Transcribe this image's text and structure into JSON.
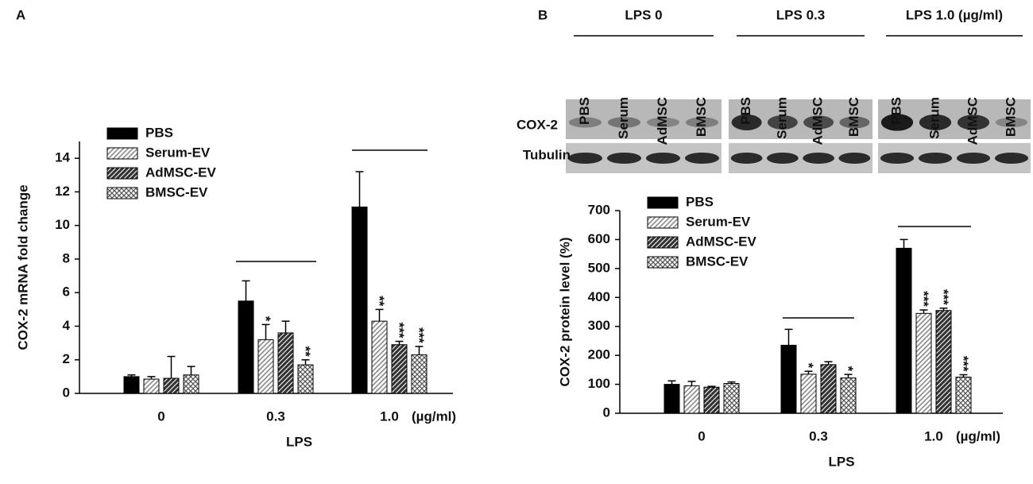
{
  "chart_data": [
    {
      "type": "bar",
      "panel_label": "A",
      "ylabel": "COX-2 mRNA fold change",
      "xlabel": "LPS",
      "x_unit": "(µg/ml)",
      "categories": [
        "0",
        "0.3",
        "1.0"
      ],
      "ylim": [
        0,
        15
      ],
      "yticks": [
        0,
        2,
        4,
        6,
        8,
        10,
        12,
        14
      ],
      "series": [
        {
          "name": "PBS",
          "color": "#000000",
          "values": [
            1.0,
            5.5,
            11.1
          ],
          "errors": [
            0.1,
            1.2,
            2.1
          ],
          "significance": [
            null,
            null,
            null
          ]
        },
        {
          "name": "Serum-EV",
          "color": "#8a8a8a",
          "values": [
            0.85,
            3.2,
            4.3
          ],
          "errors": [
            0.15,
            0.9,
            0.7
          ],
          "significance": [
            null,
            "*",
            "**"
          ]
        },
        {
          "name": "AdMSC-EV",
          "color": "#333333",
          "values": [
            0.9,
            3.6,
            2.9
          ],
          "errors": [
            1.3,
            0.7,
            0.2
          ],
          "significance": [
            null,
            null,
            "***"
          ]
        },
        {
          "name": "BMSC-EV",
          "color": "#555555",
          "values": [
            1.1,
            1.7,
            2.3
          ],
          "errors": [
            0.5,
            0.3,
            0.5
          ],
          "significance": [
            null,
            "**",
            "***"
          ]
        }
      ]
    },
    {
      "type": "bar",
      "panel_label": "B",
      "ylabel": "COX-2 protein level (%)",
      "xlabel": "LPS",
      "x_unit": "(µg/ml)",
      "categories": [
        "0",
        "0.3",
        "1.0"
      ],
      "ylim": [
        0,
        700
      ],
      "yticks": [
        0,
        100,
        200,
        300,
        400,
        500,
        600,
        700
      ],
      "series": [
        {
          "name": "PBS",
          "color": "#000000",
          "values": [
            100,
            235,
            570
          ],
          "errors": [
            12,
            55,
            30
          ],
          "significance": [
            null,
            null,
            null
          ]
        },
        {
          "name": "Serum-EV",
          "color": "#8a8a8a",
          "values": [
            95,
            135,
            345
          ],
          "errors": [
            15,
            10,
            12
          ],
          "significance": [
            null,
            "*",
            "***"
          ]
        },
        {
          "name": "AdMSC-EV",
          "color": "#333333",
          "values": [
            90,
            168,
            355
          ],
          "errors": [
            3,
            10,
            8
          ],
          "significance": [
            null,
            null,
            "***"
          ]
        },
        {
          "name": "BMSC-EV",
          "color": "#555555",
          "values": [
            103,
            122,
            125
          ],
          "errors": [
            5,
            12,
            8
          ],
          "significance": [
            null,
            "*",
            "***"
          ]
        }
      ]
    }
  ],
  "blot": {
    "groups": [
      "LPS 0",
      "LPS 0.3",
      "LPS 1.0 (µg/ml)"
    ],
    "lanes": [
      "PBS",
      "Serum",
      "AdMSC",
      "BMSC"
    ],
    "rows": [
      "COX-2",
      "Tubulin"
    ]
  }
}
